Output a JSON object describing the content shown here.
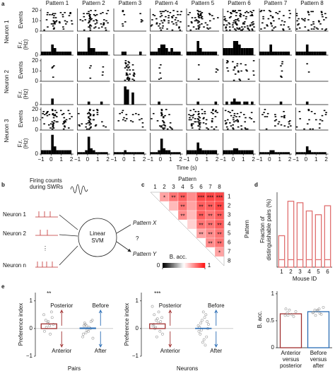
{
  "panel_letters": [
    "a",
    "b",
    "c",
    "d",
    "e"
  ],
  "panel_a": {
    "columns": [
      "Pattern 1",
      "Pattern 2",
      "Pattern 3",
      "Pattern 4",
      "Pattern 5",
      "Pattern 6",
      "Pattern 7",
      "Pattern 8"
    ],
    "events_label": "Events",
    "fr_label": [
      "F.r.",
      "(Hz)"
    ],
    "events_ylim": [
      0,
      22
    ],
    "events_yticks": [
      0,
      10,
      20
    ],
    "fr_yticks": [
      0
    ],
    "xlim": [
      -1,
      2.2
    ],
    "xticks": [
      {
        "value": -1,
        "label": "−1"
      },
      0,
      1,
      2
    ],
    "xlabel": "Time (s)",
    "bins": [
      -1,
      -0.75,
      -0.5,
      -0.25,
      0,
      0.25,
      0.5,
      0.75,
      1,
      1.25,
      1.5,
      1.75,
      2
    ],
    "neurons": [
      {
        "name": "Neuron 1",
        "fr_ylim": [
          0,
          6
        ],
        "firing_rate": [
          [
            1,
            1,
            1,
            1,
            3,
            2,
            1,
            1,
            1,
            1,
            1,
            1
          ],
          [
            1,
            1,
            1,
            1,
            5,
            2,
            2,
            1,
            1,
            1,
            1,
            1
          ],
          [
            0,
            0,
            0,
            1,
            1,
            0,
            0,
            0,
            0,
            0,
            1,
            0
          ],
          [
            1,
            1,
            1,
            2,
            3,
            3,
            2,
            1,
            2,
            1,
            1,
            1
          ],
          [
            1,
            1,
            1,
            1,
            4,
            2,
            1,
            1,
            1,
            1,
            1,
            1
          ],
          [
            2,
            2,
            2,
            2,
            4,
            4,
            3,
            2,
            2,
            2,
            2,
            2
          ],
          [
            1,
            1,
            1,
            1,
            3,
            1,
            1,
            1,
            1,
            1,
            1,
            1
          ],
          [
            1,
            1,
            1,
            1,
            3,
            1,
            1,
            1,
            1,
            1,
            1,
            1
          ]
        ]
      },
      {
        "name": "Neuron 2",
        "fr_ylim": [
          0,
          7
        ],
        "firing_rate": [
          [
            0,
            0,
            0,
            0,
            2,
            0,
            0,
            0,
            0,
            0,
            0,
            0
          ],
          [
            0,
            0,
            0,
            0,
            1,
            0,
            0,
            0,
            0,
            1,
            0,
            0
          ],
          [
            0,
            0,
            0,
            0,
            6,
            5,
            0,
            4,
            0,
            0,
            0,
            0
          ],
          [
            0,
            0,
            0,
            1,
            0,
            0,
            0,
            0,
            0,
            0,
            0,
            0
          ],
          [
            0,
            0,
            0,
            0,
            1,
            0,
            0,
            0,
            0,
            0,
            0,
            1
          ],
          [
            0,
            1,
            0,
            1,
            2,
            1,
            1,
            0,
            1,
            1,
            0,
            1
          ],
          [
            0,
            0,
            0,
            0,
            0,
            0,
            0,
            0,
            1,
            0,
            0,
            0
          ],
          [
            0,
            0,
            0,
            0,
            1,
            0,
            0,
            0,
            0,
            0,
            0,
            0
          ]
        ]
      },
      {
        "name": "Neuron 3",
        "fr_ylim": [
          0,
          11
        ],
        "firing_rate": [
          [
            2,
            2,
            2,
            2,
            10,
            4,
            2,
            2,
            2,
            2,
            2,
            2
          ],
          [
            1,
            1,
            1,
            2,
            9,
            3,
            2,
            1,
            1,
            1,
            1,
            1
          ],
          [
            1,
            1,
            1,
            1,
            2,
            1,
            1,
            1,
            1,
            1,
            1,
            1
          ],
          [
            1,
            1,
            1,
            2,
            8,
            3,
            2,
            2,
            1,
            1,
            1,
            1
          ],
          [
            2,
            2,
            2,
            2,
            6,
            3,
            2,
            2,
            2,
            2,
            2,
            2
          ],
          [
            2,
            2,
            2,
            2,
            3,
            3,
            2,
            2,
            2,
            2,
            2,
            2
          ],
          [
            1,
            1,
            1,
            1,
            2,
            2,
            1,
            1,
            1,
            1,
            1,
            1
          ],
          [
            1,
            1,
            1,
            1,
            4,
            2,
            1,
            1,
            1,
            1,
            1,
            1
          ]
        ]
      }
    ]
  },
  "panel_b": {
    "caption": [
      "Firing counts",
      "during SWRs"
    ],
    "inputs": [
      "Neuron 1",
      "Neuron 2",
      "Neuron n"
    ],
    "dots": "⋮",
    "classifier": [
      "Linear",
      "SVM"
    ],
    "outputs": [
      "Pattern X",
      "Pattern Y"
    ],
    "question": "?"
  },
  "panel_c": {
    "title": "Pattern",
    "labels": [
      "1",
      "2",
      "3",
      "4",
      "5",
      "6",
      "7",
      "8"
    ],
    "colorbar_label": "B. acc.",
    "colorbar_ticks": [
      0,
      1
    ],
    "values": [
      [
        0.7,
        0.8,
        0.85,
        0.75,
        0.9,
        0.9,
        0.9
      ],
      [
        0.65,
        0.8,
        0.7,
        0.85,
        0.85,
        0.9
      ],
      [
        0.75,
        0.65,
        0.85,
        0.8,
        0.85
      ],
      [
        0.6,
        0.8,
        0.8,
        0.85
      ],
      [
        0.7,
        0.75,
        0.8
      ],
      [
        0.75,
        0.8
      ],
      [
        0.7
      ]
    ],
    "stars": [
      [
        "*",
        "**",
        "**",
        null,
        "***",
        "***",
        "***"
      ],
      [
        null,
        "**",
        null,
        "**",
        "**",
        "**"
      ],
      [
        "**",
        null,
        "**",
        "**",
        "**"
      ],
      [
        null,
        "**",
        "**",
        "**"
      ],
      [
        "**",
        "**",
        "**"
      ],
      [
        "**",
        "**"
      ],
      [
        "*"
      ]
    ]
  },
  "panel_d": {
    "type": "bar",
    "ylabel": [
      "Fraction of",
      "distinguishable pairs (%)"
    ],
    "xlabel": "Mouse ID",
    "categories": [
      "1",
      "2",
      "3",
      "4",
      "5",
      "6"
    ],
    "values": [
      42,
      88,
      86,
      75,
      70,
      82
    ],
    "inner_line": 10,
    "ylim": [
      0,
      100
    ],
    "color": "#e07070"
  },
  "panel_e": {
    "ylabel": "Preference index",
    "plots": [
      {
        "xlabel": "Pairs",
        "ylim": [
          -1,
          1.3
        ],
        "yticks": [
          {
            "value": -1,
            "label": "−1"
          },
          0,
          1
        ],
        "groups": [
          {
            "mean": 0.17,
            "sig": "**",
            "up": "Posterior",
            "down": "Anterior",
            "color": "#a03030",
            "points": [
              0.5,
              0.3,
              0.2,
              0.1,
              0.6,
              0.15,
              -0.1,
              0.05,
              0.25,
              -0.2,
              0.4
            ]
          },
          {
            "mean": 0.02,
            "up": "Before",
            "down": "After",
            "color": "#2a6db5",
            "points": [
              -0.3,
              0.2,
              0.1,
              -0.1,
              0,
              0.3,
              -0.2,
              0.15,
              -0.05,
              0.05,
              0.25,
              -0.35,
              0.1,
              -0.15
            ]
          }
        ]
      },
      {
        "xlabel": "Neurons",
        "ylim": [
          -1,
          1.3
        ],
        "yticks": [
          {
            "value": -1,
            "label": "−1"
          },
          0,
          1
        ],
        "groups": [
          {
            "mean": 0.17,
            "sig": "***",
            "up": "Posterior",
            "down": "Anterior",
            "color": "#a03030",
            "points": [
              0.8,
              0.5,
              0.3,
              0.2,
              -0.1,
              0.4,
              0.1,
              0,
              -0.3,
              0.6,
              0.25,
              -0.2,
              0.15,
              0.05,
              0.35
            ]
          },
          {
            "mean": 0.01,
            "up": "Before",
            "down": "After",
            "color": "#2a6db5",
            "points": [
              0.1,
              -0.2,
              0.3,
              -0.4,
              0.5,
              0,
              -0.1,
              0.2,
              -0.5,
              0.4,
              -0.3,
              0.15,
              0.05,
              -0.05,
              0.6,
              -0.6,
              0.25
            ]
          }
        ]
      }
    ],
    "bacc": {
      "ylabel": "B. acc.",
      "ylim": [
        0,
        1.05
      ],
      "yticks": [
        0,
        0.5,
        1
      ],
      "groups": [
        {
          "label": [
            "Anterior",
            "versus",
            "posterior"
          ],
          "mean": 0.63,
          "color": "#a03030",
          "points": [
            0.6,
            0.65,
            0.7,
            0.62,
            0.58,
            0.67,
            0.72,
            0.6
          ]
        },
        {
          "label": [
            "Before",
            "versus",
            "after"
          ],
          "mean": 0.67,
          "color": "#2a6db5",
          "points": [
            0.65,
            0.7,
            0.68,
            0.72,
            0.62,
            0.75,
            0.66,
            0.6,
            0.7,
            0.64
          ]
        }
      ]
    }
  }
}
